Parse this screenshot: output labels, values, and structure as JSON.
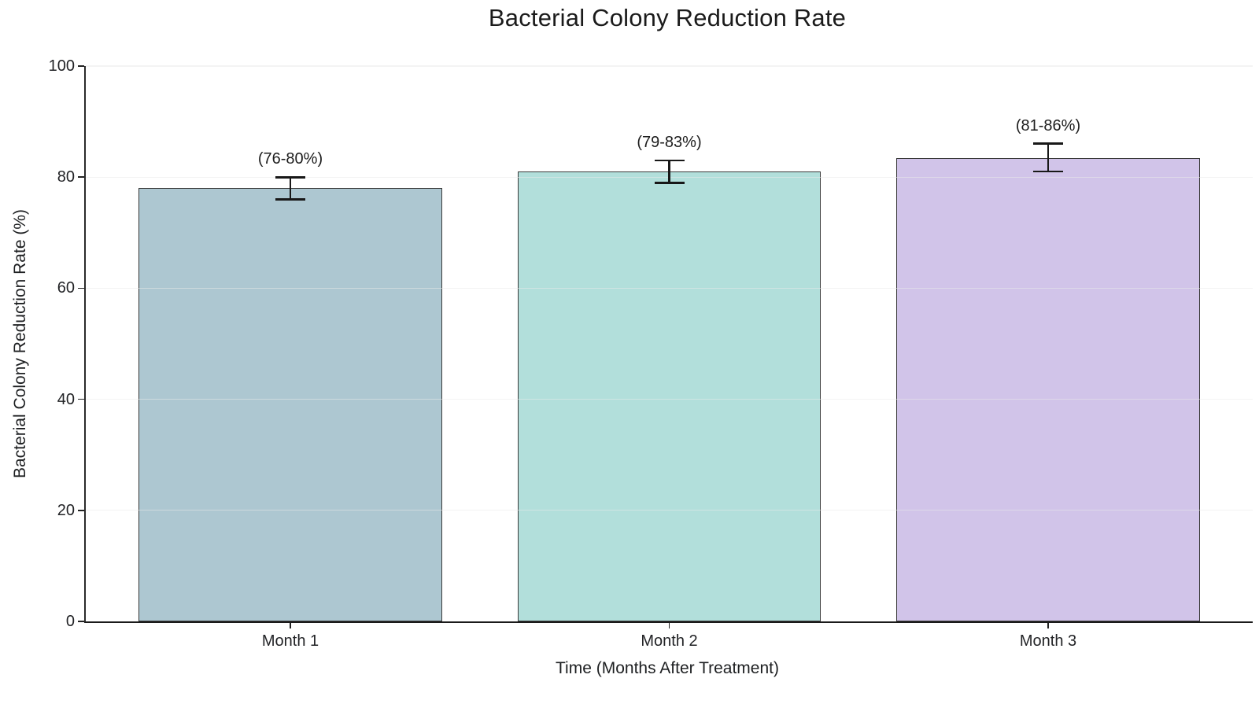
{
  "chart_data": {
    "type": "bar",
    "title": "Bacterial Colony Reduction Rate",
    "xlabel": "Time (Months After Treatment)",
    "ylabel": "Bacterial Colony Reduction Rate (%)",
    "categories": [
      "Month 1",
      "Month 2",
      "Month 3"
    ],
    "values": [
      78,
      81,
      83.5
    ],
    "error_low": [
      76,
      79,
      81
    ],
    "error_high": [
      80,
      83,
      86
    ],
    "bar_labels": [
      "(76-80%)",
      "(79-83%)",
      "(81-86%)"
    ],
    "ylim": [
      0,
      100
    ],
    "yticks": [
      0,
      20,
      40,
      60,
      80,
      100
    ],
    "grid": "horizontal-light",
    "legend_position": "none",
    "colors": {
      "bars": [
        "#ADC7D1",
        "#B2DFDB",
        "#D1C4E9"
      ],
      "bar_edge": "#3A3A3A",
      "error_bar": "#181818",
      "grid_line": "#E9E9E9",
      "tick": "#222222",
      "text": "#202124",
      "background": "#FFFFFF"
    }
  }
}
